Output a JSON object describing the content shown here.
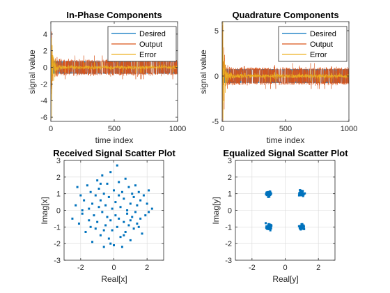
{
  "chart_data": [
    {
      "type": "line",
      "title": "In-Phase Components",
      "xlabel": "time index",
      "ylabel": "signal value",
      "xlim": [
        0,
        1000
      ],
      "ylim": [
        -6.5,
        5.5
      ],
      "xticks": [
        "0",
        "500",
        "1000"
      ],
      "yticks": [
        "-6",
        "-4",
        "-2",
        "0",
        "2",
        "4"
      ],
      "grid": false,
      "legend_position": "top-right",
      "series": [
        {
          "name": "Desired",
          "color": "#0072BD",
          "envelope": "constant +/-0.75 (QPSK symbols, hidden behind output)"
        },
        {
          "name": "Output",
          "color": "#D95319",
          "envelope": "converges to +/-0.75 after ~100 samples",
          "initial_peak": 4.3
        },
        {
          "name": "Error",
          "color": "#EDB120",
          "envelope": "decays toward 0 after ~100 samples",
          "initial_peak": -6.2
        }
      ]
    },
    {
      "type": "line",
      "title": "Quadrature Components",
      "xlabel": "time index",
      "ylabel": "signal value",
      "xlim": [
        0,
        1000
      ],
      "ylim": [
        -5,
        6
      ],
      "xticks": [
        "0",
        "500",
        "1000"
      ],
      "yticks": [
        "-5",
        "0",
        "5"
      ],
      "grid": false,
      "legend_position": "top-right",
      "series": [
        {
          "name": "Desired",
          "color": "#0072BD",
          "envelope": "constant +/-0.75"
        },
        {
          "name": "Output",
          "color": "#D95319",
          "envelope": "converges to +/-0.75 after ~100 samples",
          "initial_peak": 5.6
        },
        {
          "name": "Error",
          "color": "#EDB120",
          "envelope": "decays toward 0 after ~100 samples",
          "initial_peak": -4.9
        }
      ]
    },
    {
      "type": "scatter",
      "title": "Received Signal Scatter Plot",
      "xlabel": "Real[x]",
      "ylabel": "Imag[x]",
      "xlim": [
        -3,
        3
      ],
      "ylim": [
        -3,
        3
      ],
      "xticks": [
        "-2",
        "0",
        "2"
      ],
      "yticks": [
        "-3",
        "-2",
        "-1",
        "0",
        "1",
        "2",
        "3"
      ],
      "grid": true,
      "marker_color": "#0072BD",
      "points": [
        [
          -2.5,
          -0.5
        ],
        [
          -2.3,
          0.3
        ],
        [
          -2.1,
          -0.8
        ],
        [
          -2.0,
          0.9
        ],
        [
          -1.9,
          -0.2
        ],
        [
          -1.8,
          0.6
        ],
        [
          -1.7,
          -1.3
        ],
        [
          -1.6,
          1.5
        ],
        [
          -1.5,
          -0.6
        ],
        [
          -1.5,
          0.1
        ],
        [
          -1.4,
          1.1
        ],
        [
          -1.3,
          -1.9
        ],
        [
          -1.3,
          0.4
        ],
        [
          -1.2,
          -0.3
        ],
        [
          -1.1,
          0.9
        ],
        [
          -1.1,
          -1.1
        ],
        [
          -1.0,
          1.8
        ],
        [
          -1.0,
          -0.7
        ],
        [
          -0.9,
          0.2
        ],
        [
          -0.9,
          1.3
        ],
        [
          -0.8,
          -1.5
        ],
        [
          -0.8,
          0.6
        ],
        [
          -0.7,
          -0.1
        ],
        [
          -0.7,
          2.1
        ],
        [
          -0.6,
          -2.2
        ],
        [
          -0.6,
          1.0
        ],
        [
          -0.5,
          -0.9
        ],
        [
          -0.5,
          0.3
        ],
        [
          -0.4,
          1.6
        ],
        [
          -0.4,
          -0.4
        ],
        [
          -0.3,
          -1.7
        ],
        [
          -0.3,
          0.8
        ],
        [
          -0.2,
          2.3
        ],
        [
          -0.2,
          -0.6
        ],
        [
          -0.1,
          0.1
        ],
        [
          -0.1,
          -1.2
        ],
        [
          0.0,
          1.2
        ],
        [
          0.0,
          -2.1
        ],
        [
          0.1,
          0.5
        ],
        [
          0.1,
          -0.3
        ],
        [
          0.2,
          2.7
        ],
        [
          0.2,
          -1.0
        ],
        [
          0.3,
          1.7
        ],
        [
          0.3,
          -0.5
        ],
        [
          0.4,
          0.2
        ],
        [
          0.4,
          -1.6
        ],
        [
          0.5,
          1.1
        ],
        [
          0.5,
          -2.2
        ],
        [
          0.6,
          -0.7
        ],
        [
          0.6,
          0.7
        ],
        [
          0.7,
          1.9
        ],
        [
          0.7,
          -1.3
        ],
        [
          0.8,
          0.0
        ],
        [
          0.8,
          -0.2
        ],
        [
          0.9,
          1.4
        ],
        [
          0.9,
          -0.9
        ],
        [
          1.0,
          0.4
        ],
        [
          1.0,
          -1.8
        ],
        [
          1.1,
          1.0
        ],
        [
          1.1,
          -0.4
        ],
        [
          1.2,
          -1.1
        ],
        [
          1.2,
          0.8
        ],
        [
          1.3,
          1.5
        ],
        [
          1.3,
          -0.1
        ],
        [
          1.4,
          -0.8
        ],
        [
          1.4,
          0.3
        ],
        [
          1.5,
          1.1
        ],
        [
          1.6,
          -0.5
        ],
        [
          1.6,
          0.6
        ],
        [
          1.7,
          -1.4
        ],
        [
          1.8,
          0.9
        ],
        [
          1.9,
          -0.3
        ],
        [
          2.0,
          0.4
        ],
        [
          2.1,
          1.2
        ],
        [
          2.3,
          0.1
        ],
        [
          -2.2,
          1.4
        ],
        [
          -1.4,
          -1.0
        ],
        [
          -0.2,
          -2.0
        ],
        [
          0.6,
          -1.5
        ],
        [
          1.0,
          -0.6
        ],
        [
          -0.6,
          -1.2
        ],
        [
          -1.9,
          0.0
        ],
        [
          0.3,
          0.9
        ],
        [
          1.5,
          -1.0
        ],
        [
          -0.8,
          1.6
        ],
        [
          2.1,
          -0.1
        ]
      ]
    },
    {
      "type": "scatter",
      "title": "Equalized Signal Scatter Plot",
      "xlabel": "Real[y]",
      "ylabel": "Imag[y]",
      "xlim": [
        -3,
        3
      ],
      "ylim": [
        -3,
        3
      ],
      "xticks": [
        "-2",
        "0",
        "2"
      ],
      "yticks": [
        "-3",
        "-2",
        "-1",
        "0",
        "1",
        "2",
        "3"
      ],
      "grid": true,
      "marker_color": "#0072BD",
      "clusters": [
        {
          "center": [
            -1,
            1
          ],
          "spread": 0.12
        },
        {
          "center": [
            1,
            1
          ],
          "spread": 0.12
        },
        {
          "center": [
            -1,
            -1
          ],
          "spread": 0.12
        },
        {
          "center": [
            1,
            -1
          ],
          "spread": 0.12
        }
      ]
    }
  ]
}
